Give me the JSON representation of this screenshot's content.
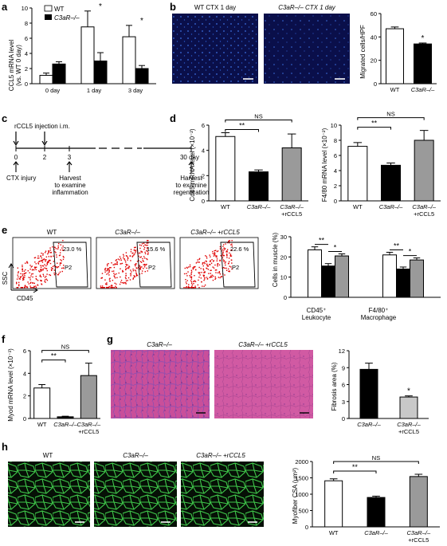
{
  "panels": {
    "a": {
      "label": "a",
      "ylabel": "CCL5 mRNA level",
      "ylabel2": "(vs. WT 0 day)",
      "legend": [
        "WT",
        "C3aR–/–"
      ],
      "chart_data": {
        "type": "bar",
        "categories": [
          "0 day",
          "1 day",
          "3 day"
        ],
        "series": [
          {
            "name": "WT",
            "values": [
              1.1,
              7.5,
              6.2
            ],
            "errors": [
              0.3,
              2.1,
              1.5
            ]
          },
          {
            "name": "C3aR–/–",
            "values": [
              2.6,
              3.0,
              2.0
            ],
            "errors": [
              0.3,
              1.1,
              0.4
            ]
          }
        ],
        "ylim": [
          0,
          10
        ],
        "yticks": [
          "0",
          "2",
          "4",
          "6",
          "8",
          "10"
        ],
        "significance": [
          "",
          "*",
          "*"
        ]
      }
    },
    "b": {
      "label": "b",
      "image_titles": [
        "WT CTX 1 day",
        "C3aR–/– CTX 1 day"
      ],
      "ylabel": "Migrated cells/HPF",
      "chart_data": {
        "type": "bar",
        "categories": [
          "WT",
          "C3aR–/–"
        ],
        "values": [
          47,
          34
        ],
        "errors": [
          1.5,
          0.8
        ],
        "ylim": [
          0,
          60
        ],
        "yticks": [
          "0",
          "20",
          "40",
          "60"
        ],
        "significance": [
          "",
          "*"
        ]
      }
    },
    "c": {
      "label": "c",
      "injection": "rCCL5 injection i.m.",
      "ticks": [
        "0",
        "2",
        "3",
        "30 day"
      ],
      "cells": [
        "CTX injury",
        "Harvest\nto examine\ninflammation",
        "Harvest\nto examine\nregeneration"
      ],
      "text_lines": {
        "ctx": "CTX injury",
        "h1": [
          "Harvest",
          "to examine",
          "inflammation"
        ],
        "h2": [
          "Harvest",
          "to examine",
          "regeneration"
        ]
      }
    },
    "d": {
      "label": "d",
      "charts": [
        {
          "ylabel": "Cd45 mRNA level (×10⁻²)",
          "chart_data": {
            "type": "bar",
            "categories": [
              "WT",
              "C3aR–/–",
              "C3aR–/– +rCCL5"
            ],
            "values": [
              5.1,
              2.3,
              4.2
            ],
            "errors": [
              0.3,
              0.15,
              1.1
            ],
            "ylim": [
              0,
              6
            ],
            "yticks": [
              "0",
              "2",
              "4",
              "6"
            ],
            "brackets": [
              "**",
              "NS"
            ]
          }
        },
        {
          "ylabel": "F4/80 mRNA level (×10⁻²)",
          "chart_data": {
            "type": "bar",
            "categories": [
              "WT",
              "C3aR–/–",
              "C3aR–/– +rCCL5"
            ],
            "values": [
              7.2,
              4.7,
              8.0
            ],
            "errors": [
              0.5,
              0.3,
              1.3
            ],
            "ylim": [
              0,
              10
            ],
            "yticks": [
              "0",
              "2",
              "4",
              "6",
              "8",
              "10"
            ],
            "brackets": [
              "**",
              "NS"
            ]
          }
        }
      ]
    },
    "e": {
      "label": "e",
      "flow_titles": [
        "WT",
        "C3aR–/–",
        "C3aR–/– +rCCL5"
      ],
      "percents": [
        "23.0 %",
        "15.6 %",
        "22.6 %"
      ],
      "gate": "P2",
      "ssc": "SSC",
      "cd45": "CD45",
      "ylabel": "Cells in muscle (%)",
      "chart_data": {
        "type": "bar",
        "categories": [
          "CD45⁺ Leukocyte",
          "F4/80⁺ Macrophage"
        ],
        "series": [
          {
            "name": "WT",
            "values": [
              23.5,
              21
            ],
            "errors": [
              1.5,
              1.3
            ]
          },
          {
            "name": "C3aR–/–",
            "values": [
              15.5,
              14
            ],
            "errors": [
              1.2,
              1.0
            ]
          },
          {
            "name": "C3aR–/– +rCCL5",
            "values": [
              20.5,
              18.5
            ],
            "errors": [
              1.0,
              1.0
            ]
          }
        ],
        "ylim": [
          0,
          30
        ],
        "yticks": [
          "0",
          "10",
          "20",
          "30"
        ],
        "significance": [
          "**",
          "*",
          "**",
          "*"
        ],
        "group_lines": [
          [
            "CD45⁺",
            "Leukocyte"
          ],
          [
            "F4/80⁺",
            "Macrophage"
          ]
        ]
      }
    },
    "f": {
      "label": "f",
      "ylabel": "Myod mRNA level (×10⁻³)",
      "chart_data": {
        "type": "bar",
        "categories": [
          "WT",
          "C3aR–/–",
          "C3aR–/– +rCCL5"
        ],
        "values": [
          2.7,
          0.15,
          3.8
        ],
        "errors": [
          0.3,
          0.05,
          1.1
        ],
        "ylim": [
          0,
          6
        ],
        "yticks": [
          "0",
          "2",
          "4",
          "6"
        ],
        "brackets": [
          "**",
          "NS"
        ]
      }
    },
    "g": {
      "label": "g",
      "image_titles": [
        "C3aR–/–",
        "C3aR–/– +rCCL5"
      ],
      "ylabel": "Fibrosis area (%)",
      "chart_data": {
        "type": "bar",
        "categories": [
          "C3aR–/–",
          "C3aR–/– +rCCL5"
        ],
        "values": [
          8.7,
          3.8
        ],
        "errors": [
          1.1,
          0.2
        ],
        "ylim": [
          0,
          12
        ],
        "yticks": [
          "0",
          "3",
          "6",
          "9",
          "12"
        ],
        "significance": [
          "",
          "*"
        ]
      }
    },
    "h": {
      "label": "h",
      "image_titles": [
        "WT",
        "C3aR–/–",
        "C3aR–/– +rCCL5"
      ],
      "ylabel": "Myofiber CSA (μm²)",
      "chart_data": {
        "type": "bar",
        "categories": [
          "WT",
          "C3aR–/–",
          "C3aR–/– +rCCL5"
        ],
        "values": [
          1410,
          900,
          1540
        ],
        "errors": [
          60,
          40,
          70
        ],
        "ylim": [
          0,
          2000
        ],
        "yticks": [
          "0",
          "500",
          "1000",
          "1500",
          "2000"
        ],
        "brackets": [
          "**",
          "NS"
        ]
      }
    }
  },
  "colors": {
    "wt": "#ffffff",
    "ko": "#000000",
    "rescue": "#9a9a9a",
    "rescue_light": "#c8c8c8",
    "micro_bg": "#0a0f4a",
    "he_pink": "#c94f9a",
    "green": "#3fc84a"
  }
}
